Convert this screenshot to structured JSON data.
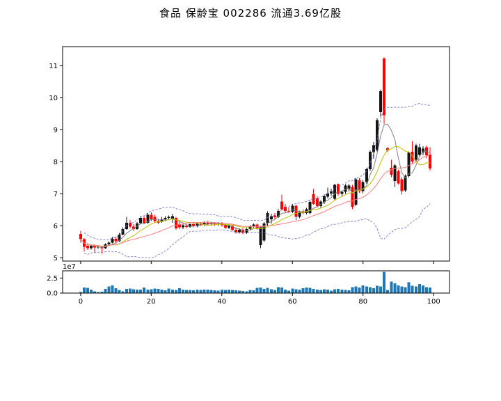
{
  "title": "食品 保龄宝 002286 流通3.69亿股",
  "chart_data": [
    {
      "type": "candlestick",
      "panel": "price",
      "title": "",
      "xlabel": "",
      "ylabel": "",
      "grid": false,
      "legend": "none",
      "xlim": [
        -5.1,
        104.5
      ],
      "ylim": [
        4.9,
        11.6
      ],
      "ytick_values": [
        5,
        6,
        7,
        8,
        9,
        10,
        11
      ],
      "ytick_labels": [
        "5",
        "6",
        "7",
        "8",
        "9",
        "10",
        "11"
      ],
      "xtick_values": [
        0,
        20,
        40,
        60,
        80,
        100
      ],
      "colors": {
        "up": "#151515",
        "down": "#ff0000",
        "ma5": "#808080",
        "ma10": "#bfbf00",
        "ma20": "#ff7a7a",
        "band": "#7777cc",
        "axis": "#000000"
      },
      "overlays": [
        {
          "name": "ma5",
          "window": 5,
          "style": "solid"
        },
        {
          "name": "ma10",
          "window": 10,
          "style": "solid"
        },
        {
          "name": "ma20",
          "window": 20,
          "style": "solid"
        },
        {
          "name": "bollinger",
          "window": 20,
          "k": 2,
          "style": "dashed"
        }
      ],
      "ohlc": [
        [
          5.75,
          5.85,
          5.48,
          5.58
        ],
        [
          5.58,
          5.62,
          5.19,
          5.35
        ],
        [
          5.38,
          5.45,
          5.25,
          5.3
        ],
        [
          5.3,
          5.42,
          5.26,
          5.38
        ],
        [
          5.38,
          5.42,
          5.15,
          5.32
        ],
        [
          5.32,
          5.4,
          5.28,
          5.35
        ],
        [
          5.35,
          5.38,
          5.14,
          5.3
        ],
        [
          5.3,
          5.45,
          5.28,
          5.42
        ],
        [
          5.42,
          5.52,
          5.38,
          5.48
        ],
        [
          5.48,
          5.65,
          5.45,
          5.6
        ],
        [
          5.6,
          5.65,
          5.48,
          5.52
        ],
        [
          5.52,
          5.78,
          5.5,
          5.73
        ],
        [
          5.73,
          5.95,
          5.7,
          5.9
        ],
        [
          5.9,
          6.28,
          5.88,
          6.1
        ],
        [
          6.1,
          6.18,
          5.92,
          5.98
        ],
        [
          5.98,
          6.05,
          5.85,
          5.9
        ],
        [
          5.9,
          6.12,
          5.88,
          6.08
        ],
        [
          6.08,
          6.3,
          6.05,
          6.25
        ],
        [
          6.25,
          6.32,
          6.05,
          6.1
        ],
        [
          6.1,
          6.4,
          6.06,
          6.35
        ],
        [
          6.35,
          6.42,
          6.15,
          6.2
        ],
        [
          6.28,
          6.35,
          6.1,
          6.15
        ],
        [
          6.15,
          6.22,
          6.05,
          6.1
        ],
        [
          6.15,
          6.28,
          6.1,
          6.2
        ],
        [
          6.2,
          6.3,
          6.15,
          6.25
        ],
        [
          6.25,
          6.32,
          6.18,
          6.28
        ],
        [
          6.22,
          6.38,
          6.1,
          6.3
        ],
        [
          6.25,
          6.28,
          5.88,
          5.92
        ],
        [
          6.05,
          6.12,
          5.9,
          5.95
        ],
        [
          5.95,
          6.05,
          5.9,
          6.02
        ],
        [
          6.0,
          6.05,
          5.92,
          5.97
        ],
        [
          5.97,
          6.08,
          5.94,
          6.05
        ],
        [
          6.05,
          6.1,
          5.95,
          5.99
        ],
        [
          5.99,
          6.1,
          5.96,
          6.07
        ],
        [
          6.07,
          6.12,
          6.0,
          6.03
        ],
        [
          6.03,
          6.14,
          6.0,
          6.1
        ],
        [
          6.1,
          6.15,
          6.02,
          6.05
        ],
        [
          6.05,
          6.13,
          6.01,
          6.09
        ],
        [
          6.09,
          6.12,
          6.0,
          6.04
        ],
        [
          6.04,
          6.12,
          6.0,
          6.08
        ],
        [
          6.08,
          6.12,
          5.98,
          6.02
        ],
        [
          6.02,
          6.08,
          5.9,
          5.94
        ],
        [
          5.94,
          6.04,
          5.9,
          6.0
        ],
        [
          6.0,
          6.03,
          5.84,
          5.88
        ],
        [
          5.88,
          5.95,
          5.76,
          5.8
        ],
        [
          5.8,
          5.92,
          5.76,
          5.88
        ],
        [
          5.88,
          5.92,
          5.74,
          5.78
        ],
        [
          5.78,
          5.95,
          5.75,
          5.9
        ],
        [
          5.9,
          6.02,
          5.86,
          5.98
        ],
        [
          5.98,
          6.08,
          5.94,
          6.04
        ],
        [
          6.04,
          6.07,
          5.88,
          5.93
        ],
        [
          5.4,
          6.0,
          5.3,
          5.97
        ],
        [
          5.54,
          6.12,
          5.5,
          6.08
        ],
        [
          6.08,
          6.45,
          6.0,
          6.4
        ],
        [
          6.2,
          6.38,
          6.08,
          6.3
        ],
        [
          6.32,
          6.4,
          6.22,
          6.27
        ],
        [
          6.28,
          6.52,
          6.25,
          6.47
        ],
        [
          6.76,
          6.98,
          6.48,
          6.52
        ],
        [
          6.6,
          6.68,
          6.42,
          6.47
        ],
        [
          6.47,
          6.58,
          6.4,
          6.44
        ],
        [
          6.44,
          6.68,
          6.4,
          6.63
        ],
        [
          6.63,
          6.66,
          6.18,
          6.28
        ],
        [
          6.28,
          6.48,
          6.24,
          6.43
        ],
        [
          6.46,
          6.52,
          6.36,
          6.4
        ],
        [
          6.4,
          6.56,
          6.36,
          6.52
        ],
        [
          6.4,
          6.8,
          6.36,
          6.75
        ],
        [
          6.99,
          7.15,
          6.66,
          6.68
        ],
        [
          6.86,
          6.92,
          6.58,
          6.62
        ],
        [
          6.62,
          6.8,
          6.56,
          6.76
        ],
        [
          6.74,
          6.98,
          6.68,
          6.93
        ],
        [
          6.91,
          7.2,
          6.86,
          7.01
        ],
        [
          7.01,
          7.16,
          6.93,
          7.09
        ],
        [
          6.85,
          7.32,
          6.8,
          7.28
        ],
        [
          7.3,
          7.33,
          6.95,
          7.0
        ],
        [
          7.0,
          7.1,
          6.92,
          7.06
        ],
        [
          7.06,
          7.3,
          7.0,
          7.26
        ],
        [
          7.15,
          7.31,
          7.08,
          7.26
        ],
        [
          7.22,
          7.28,
          6.52,
          6.6
        ],
        [
          6.66,
          7.49,
          6.62,
          7.46
        ],
        [
          7.42,
          7.49,
          7.03,
          7.09
        ],
        [
          7.09,
          7.42,
          7.02,
          7.37
        ],
        [
          7.37,
          7.82,
          7.32,
          7.77
        ],
        [
          7.77,
          8.36,
          7.72,
          8.31
        ],
        [
          8.31,
          8.62,
          8.1,
          8.52
        ],
        [
          8.37,
          9.36,
          8.32,
          9.31
        ],
        [
          9.56,
          10.26,
          9.41,
          10.21
        ],
        [
          11.23,
          11.26,
          9.19,
          9.46
        ],
        [
          8.42,
          8.47,
          8.3,
          8.36
        ],
        [
          7.81,
          8.06,
          7.52,
          7.6
        ],
        [
          7.4,
          7.93,
          7.22,
          7.89
        ],
        [
          7.71,
          7.76,
          7.29,
          7.33
        ],
        [
          7.46,
          7.52,
          6.98,
          7.09
        ],
        [
          7.11,
          7.61,
          7.06,
          7.56
        ],
        [
          7.56,
          8.33,
          7.51,
          8.29
        ],
        [
          8.31,
          8.64,
          7.96,
          8.01
        ],
        [
          8.06,
          8.56,
          8.01,
          8.51
        ],
        [
          8.22,
          8.56,
          8.16,
          8.46
        ],
        [
          8.29,
          8.49,
          8.21,
          8.41
        ],
        [
          8.46,
          8.51,
          8.11,
          8.21
        ],
        [
          8.23,
          8.46,
          7.73,
          7.79
        ]
      ]
    },
    {
      "type": "bar",
      "panel": "volume",
      "title": "",
      "xlabel": "",
      "ylabel": "",
      "grid": false,
      "bar_color": "#1f77b4",
      "ylim": [
        0,
        37000000
      ],
      "offset_label": "1e7",
      "ytick_values": [
        0,
        25000000
      ],
      "ytick_labels": [
        "0.0",
        "2.5"
      ],
      "xtick_values": [
        0,
        20,
        40,
        60,
        80,
        100
      ],
      "xtick_labels": [
        "0",
        "20",
        "40",
        "60",
        "80",
        "100"
      ],
      "values": [
        1500000,
        9000000,
        8500000,
        5500000,
        3000000,
        2000000,
        2500000,
        7000000,
        11000000,
        12500000,
        8000000,
        5000000,
        3000000,
        7000000,
        7500000,
        6500000,
        6000000,
        5500000,
        9000000,
        5500000,
        6500000,
        7500000,
        7000000,
        6000000,
        4500000,
        7500000,
        6000000,
        5000000,
        8000000,
        5500000,
        5000000,
        5000000,
        4500000,
        5500000,
        5000000,
        5500000,
        6000000,
        5000000,
        4500000,
        4000000,
        5500000,
        5000000,
        6000000,
        5000000,
        4500000,
        4000000,
        3500000,
        3000000,
        5000000,
        4500000,
        8500000,
        9000000,
        7000000,
        8500000,
        6500000,
        5000000,
        10000000,
        9000000,
        6000000,
        4000000,
        7500000,
        6500000,
        5500000,
        8000000,
        9000000,
        8500000,
        7000000,
        6000000,
        5000000,
        6500000,
        5500000,
        4000000,
        6500000,
        7000000,
        6000000,
        5000000,
        4500000,
        10000000,
        11000000,
        9000000,
        13000000,
        11000000,
        10000000,
        8000000,
        12000000,
        11000000,
        35000000,
        5000000,
        19000000,
        16000000,
        13000000,
        11000000,
        10000000,
        18000000,
        12000000,
        11000000,
        15000000,
        13000000,
        10000000,
        9500000
      ]
    }
  ]
}
